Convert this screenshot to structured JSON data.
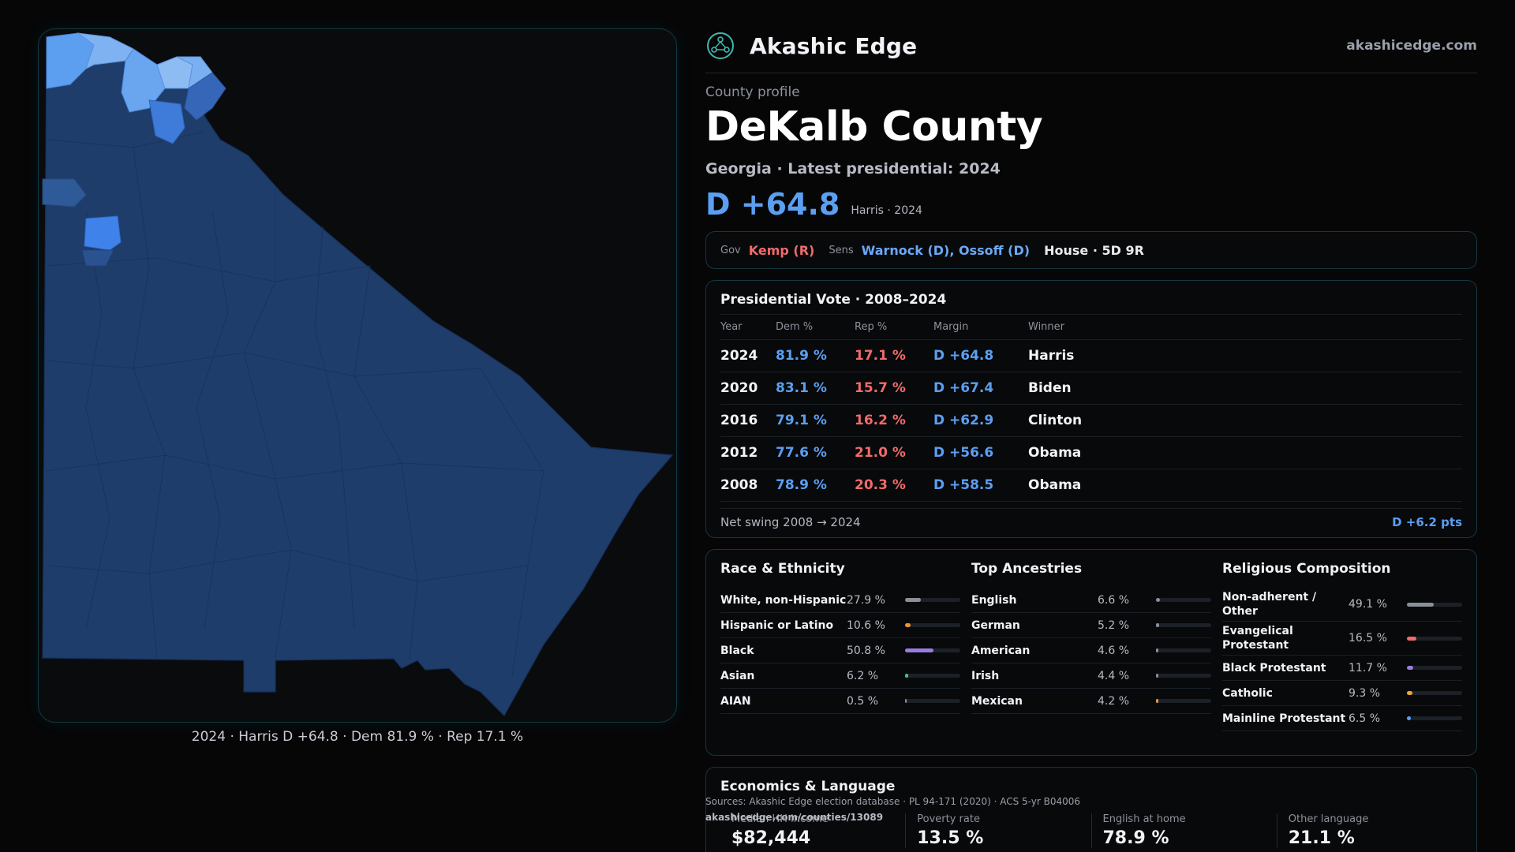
{
  "brand": {
    "name": "Akashic Edge",
    "url": "akashicedge.com",
    "logo_icon": "globe-network-icon"
  },
  "profile": {
    "eyebrow": "County profile",
    "county": "DeKalb County",
    "subline": "Georgia · Latest presidential: 2024",
    "margin": "D +64.8",
    "margin_note": "Harris · 2024"
  },
  "officials": {
    "gov_label": "Gov",
    "gov": "Kemp (R)",
    "sens_label": "Sens",
    "sens": "Warnock (D), Ossoff (D)",
    "house": "House · 5D 9R"
  },
  "presidential": {
    "title": "Presidential Vote · 2008–2024",
    "headers": [
      "Year",
      "Dem %",
      "Rep %",
      "Margin",
      "Winner"
    ],
    "rows": [
      {
        "year": "2024",
        "dem": "81.9 %",
        "rep": "17.1 %",
        "margin": "D +64.8",
        "winner": "Harris"
      },
      {
        "year": "2020",
        "dem": "83.1 %",
        "rep": "15.7 %",
        "margin": "D +67.4",
        "winner": "Biden"
      },
      {
        "year": "2016",
        "dem": "79.1 %",
        "rep": "16.2 %",
        "margin": "D +62.9",
        "winner": "Clinton"
      },
      {
        "year": "2012",
        "dem": "77.6 %",
        "rep": "21.0 %",
        "margin": "D +56.6",
        "winner": "Obama"
      },
      {
        "year": "2008",
        "dem": "78.9 %",
        "rep": "20.3 %",
        "margin": "D +58.5",
        "winner": "Obama"
      }
    ],
    "swing_label": "Net swing 2008 → 2024",
    "swing_value": "D +6.2 pts"
  },
  "race": {
    "title": "Race & Ethnicity",
    "items": [
      {
        "name": "White, non-Hispanic",
        "pct": "27.9 %",
        "value": 27.9,
        "color": "#8a8f98"
      },
      {
        "name": "Hispanic or Latino",
        "pct": "10.6 %",
        "value": 10.6,
        "color": "#e8953a"
      },
      {
        "name": "Black",
        "pct": "50.8 %",
        "value": 50.8,
        "color": "#9a7be0"
      },
      {
        "name": "Asian",
        "pct": "6.2 %",
        "value": 6.2,
        "color": "#3cc48a"
      },
      {
        "name": "AIAN",
        "pct": "0.5 %",
        "value": 0.5,
        "color": "#8a8f98"
      }
    ]
  },
  "ancestry": {
    "title": "Top Ancestries",
    "items": [
      {
        "name": "English",
        "pct": "6.6 %",
        "value": 6.6,
        "color": "#8a8f98"
      },
      {
        "name": "German",
        "pct": "5.2 %",
        "value": 5.2,
        "color": "#8a8f98"
      },
      {
        "name": "American",
        "pct": "4.6 %",
        "value": 4.6,
        "color": "#8a8f98"
      },
      {
        "name": "Irish",
        "pct": "4.4 %",
        "value": 4.4,
        "color": "#8a8f98"
      },
      {
        "name": "Mexican",
        "pct": "4.2 %",
        "value": 4.2,
        "color": "#e8953a"
      }
    ]
  },
  "religion": {
    "title": "Religious Composition",
    "items": [
      {
        "name": "Non-adherent / Other",
        "pct": "49.1 %",
        "value": 49.1,
        "color": "#8a8f98"
      },
      {
        "name": "Evangelical Protestant",
        "pct": "16.5 %",
        "value": 16.5,
        "color": "#f06b6b"
      },
      {
        "name": "Black Protestant",
        "pct": "11.7 %",
        "value": 11.7,
        "color": "#9a7be0"
      },
      {
        "name": "Catholic",
        "pct": "9.3 %",
        "value": 9.3,
        "color": "#e8a93a"
      },
      {
        "name": "Mainline Protestant",
        "pct": "6.5 %",
        "value": 6.5,
        "color": "#5b9ff2"
      }
    ]
  },
  "economics": {
    "title": "Economics & Language",
    "cols": [
      {
        "label": "Median HH income",
        "value": "$82,444"
      },
      {
        "label": "Poverty rate",
        "value": "13.5 %"
      },
      {
        "label": "English at home",
        "value": "78.9 %"
      },
      {
        "label": "Other language",
        "value": "21.1 %"
      }
    ]
  },
  "map": {
    "caption": "2024 · Harris D +64.8 · Dem 81.9 % · Rep 17.1 %"
  },
  "source": {
    "line": "Sources: Akashic Edge election database · PL 94-171 (2020) · ACS 5-yr B04006",
    "url": "akashicedge.com/counties/13089"
  }
}
